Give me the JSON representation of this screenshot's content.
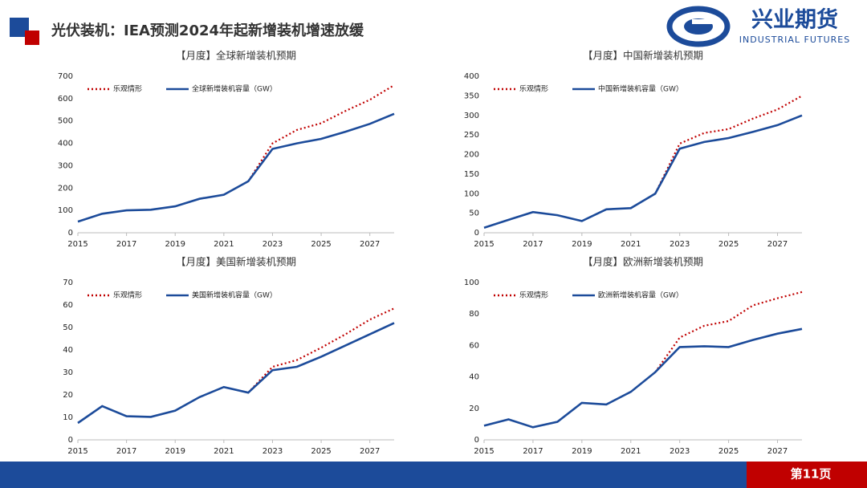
{
  "header": {
    "title": "光伏装机：IEA预测2024年起新增装机增速放缓",
    "logo_name": "兴业期货",
    "logo_sub": "INDUSTRIAL FUTURES"
  },
  "footer": {
    "page": "第11页"
  },
  "chart_data": [
    {
      "type": "line",
      "title": "【月度】全球新增装机预期",
      "x": [
        2015,
        2016,
        2017,
        2018,
        2019,
        2020,
        2021,
        2022,
        2023,
        2024,
        2025,
        2026,
        2027,
        2028
      ],
      "xlim": [
        2015,
        2028
      ],
      "xticks": [
        2015,
        2017,
        2019,
        2021,
        2023,
        2025,
        2027
      ],
      "ylim": [
        0,
        700
      ],
      "yticks": [
        0,
        100,
        200,
        300,
        400,
        500,
        600,
        700
      ],
      "series": [
        {
          "name": "乐观情形",
          "color": "#c00000",
          "style": "dotted",
          "values": [
            null,
            null,
            null,
            null,
            null,
            null,
            null,
            230,
            400,
            460,
            490,
            545,
            595,
            660
          ]
        },
        {
          "name": "全球新增装机容量（GW）",
          "color": "#1c4b9a",
          "style": "solid",
          "values": [
            50,
            85,
            100,
            103,
            118,
            152,
            170,
            230,
            375,
            400,
            420,
            452,
            487,
            532
          ]
        }
      ]
    },
    {
      "type": "line",
      "title": "【月度】中国新增装机预期",
      "x": [
        2015,
        2016,
        2017,
        2018,
        2019,
        2020,
        2021,
        2022,
        2023,
        2024,
        2025,
        2026,
        2027,
        2028
      ],
      "xlim": [
        2015,
        2028
      ],
      "xticks": [
        2015,
        2017,
        2019,
        2021,
        2023,
        2025,
        2027
      ],
      "ylim": [
        0,
        400
      ],
      "yticks": [
        0,
        50,
        100,
        150,
        200,
        250,
        300,
        350,
        400
      ],
      "series": [
        {
          "name": "乐观情形",
          "color": "#c00000",
          "style": "dotted",
          "values": [
            null,
            null,
            null,
            null,
            null,
            null,
            null,
            100,
            228,
            255,
            265,
            292,
            315,
            350
          ]
        },
        {
          "name": "中国新增装机容量（GW）",
          "color": "#1c4b9a",
          "style": "solid",
          "values": [
            13,
            33,
            53,
            45,
            30,
            60,
            63,
            100,
            215,
            232,
            242,
            258,
            275,
            300
          ]
        }
      ]
    },
    {
      "type": "line",
      "title": "【月度】美国新增装机预期",
      "x": [
        2015,
        2016,
        2017,
        2018,
        2019,
        2020,
        2021,
        2022,
        2023,
        2024,
        2025,
        2026,
        2027,
        2028
      ],
      "xlim": [
        2015,
        2028
      ],
      "xticks": [
        2015,
        2017,
        2019,
        2021,
        2023,
        2025,
        2027
      ],
      "ylim": [
        0,
        70
      ],
      "yticks": [
        0,
        10,
        20,
        30,
        40,
        50,
        60,
        70
      ],
      "series": [
        {
          "name": "乐观情形",
          "color": "#c00000",
          "style": "dotted",
          "values": [
            null,
            null,
            null,
            null,
            null,
            null,
            null,
            21,
            32.5,
            35.5,
            41,
            47,
            53.5,
            58.5
          ]
        },
        {
          "name": "美国新增装机容量（GW）",
          "color": "#1c4b9a",
          "style": "solid",
          "values": [
            7.5,
            15,
            10.5,
            10.2,
            13,
            19,
            23.5,
            21,
            31,
            32.5,
            37,
            42,
            47,
            52
          ]
        }
      ]
    },
    {
      "type": "line",
      "title": "【月度】欧洲新增装机预期",
      "x": [
        2015,
        2016,
        2017,
        2018,
        2019,
        2020,
        2021,
        2022,
        2023,
        2024,
        2025,
        2026,
        2027,
        2028
      ],
      "xlim": [
        2015,
        2028
      ],
      "xticks": [
        2015,
        2017,
        2019,
        2021,
        2023,
        2025,
        2027
      ],
      "ylim": [
        0,
        100
      ],
      "yticks": [
        0,
        20,
        40,
        60,
        80,
        100
      ],
      "series": [
        {
          "name": "乐观情形",
          "color": "#c00000",
          "style": "dotted",
          "values": [
            null,
            null,
            null,
            null,
            null,
            null,
            null,
            43,
            65,
            72.5,
            75.5,
            85.5,
            90,
            94
          ]
        },
        {
          "name": "欧洲新增装机容量（GW）",
          "color": "#1c4b9a",
          "style": "solid",
          "values": [
            9,
            13,
            8,
            11.5,
            23.5,
            22.5,
            30.5,
            43,
            59,
            59.5,
            59,
            63.5,
            67.5,
            70.5
          ]
        }
      ]
    }
  ]
}
